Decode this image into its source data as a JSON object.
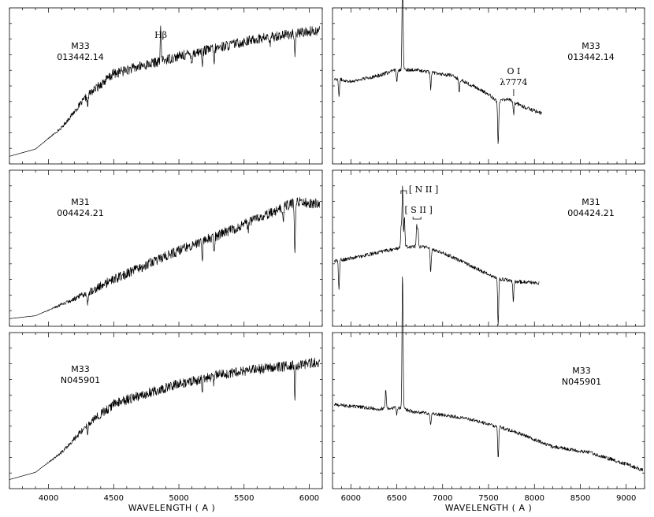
{
  "figure": {
    "xlabel_left": "WAVELENGTH  ( A )",
    "xlabel_right": "WAVELENGTH  ( A )"
  },
  "chart_data": [
    {
      "type": "line",
      "panel": "top-left",
      "galaxy": "M33",
      "star": "013442.14",
      "xlim": [
        3700,
        6100
      ],
      "xticks": [
        4000,
        4500,
        5000,
        5500,
        6000
      ],
      "yticks": "unlabeled",
      "annotations": [
        {
          "text": "Hβ",
          "wavelength": 4861
        }
      ],
      "shape": "blue-weak",
      "profile": {
        "x": [
          3700,
          3900,
          4100,
          4300,
          4500,
          4700,
          5000,
          5300,
          5600,
          5900,
          6080
        ],
        "y": [
          0.02,
          0.07,
          0.22,
          0.45,
          0.6,
          0.65,
          0.72,
          0.78,
          0.84,
          0.88,
          0.9
        ]
      },
      "lines": [
        [
          4861,
          0.22,
          1
        ],
        [
          5890,
          -0.18,
          1
        ],
        [
          5270,
          -0.1,
          1
        ],
        [
          5180,
          -0.08,
          1
        ],
        [
          4300,
          -0.08,
          1
        ],
        [
          5100,
          -0.06,
          1
        ],
        [
          5700,
          -0.06,
          1
        ]
      ]
    },
    {
      "type": "line",
      "panel": "top-right",
      "galaxy": "M33",
      "star": "013442.14",
      "xlim": [
        5800,
        9200
      ],
      "xticks": [
        6000,
        6500,
        7000,
        7500,
        8000,
        8500,
        9000
      ],
      "yticks": "unlabeled",
      "annotations": [
        {
          "text": "O I",
          "wavelength": 7774
        },
        {
          "text": "λ7774",
          "wavelength": 7774
        }
      ],
      "shape": "red-stars",
      "profile": {
        "x": [
          5820,
          6000,
          6300,
          6500,
          6700,
          6900,
          7100,
          7300,
          7500,
          7600,
          7700,
          7900,
          8080
        ],
        "y": [
          0.56,
          0.54,
          0.58,
          0.62,
          0.62,
          0.6,
          0.58,
          0.52,
          0.45,
          0.4,
          0.42,
          0.36,
          0.32
        ]
      },
      "lines": [
        [
          6563,
          0.72,
          1
        ],
        [
          7605,
          -0.3,
          1
        ],
        [
          6870,
          -0.12,
          1
        ],
        [
          6500,
          -0.08,
          1
        ],
        [
          5870,
          -0.12,
          1
        ],
        [
          7180,
          -0.1,
          1
        ],
        [
          7774,
          -0.08,
          1
        ]
      ]
    },
    {
      "type": "line",
      "panel": "middle-left",
      "galaxy": "M31",
      "star": "004424.21",
      "xlim": [
        3700,
        6100
      ],
      "xticks": [
        4000,
        4500,
        5000,
        5500,
        6000
      ],
      "yticks": "unlabeled",
      "annotations": [],
      "shape": "blue-strong",
      "profile": {
        "x": [
          3700,
          3900,
          4200,
          4500,
          4800,
          5100,
          5400,
          5700,
          5900,
          6080
        ],
        "y": [
          0.02,
          0.04,
          0.16,
          0.3,
          0.42,
          0.54,
          0.64,
          0.76,
          0.84,
          0.82
        ]
      },
      "lines": [
        [
          5890,
          -0.35,
          1
        ],
        [
          5180,
          -0.12,
          1
        ],
        [
          5270,
          -0.12,
          1
        ],
        [
          4300,
          -0.08,
          1
        ],
        [
          5800,
          -0.1,
          1
        ],
        [
          5530,
          -0.06,
          1
        ]
      ]
    },
    {
      "type": "line",
      "panel": "middle-right",
      "galaxy": "M31",
      "star": "004424.21",
      "xlim": [
        5800,
        9200
      ],
      "xticks": [
        6000,
        6500,
        7000,
        7500,
        8000,
        8500,
        9000
      ],
      "yticks": "unlabeled",
      "annotations": [
        {
          "text": "[ N II ]",
          "wavelength": 6563
        },
        {
          "text": "[ S II ]",
          "wavelength": 6720
        }
      ],
      "shape": "red-stars",
      "profile": {
        "x": [
          5820,
          6000,
          6300,
          6600,
          6800,
          7000,
          7200,
          7400,
          7600,
          7800,
          8050
        ],
        "y": [
          0.42,
          0.44,
          0.48,
          0.52,
          0.52,
          0.48,
          0.42,
          0.36,
          0.3,
          0.28,
          0.27
        ]
      },
      "lines": [
        [
          6563,
          0.42,
          1
        ],
        [
          6584,
          0.2,
          1
        ],
        [
          6548,
          0.15,
          1
        ],
        [
          6717,
          0.14,
          1
        ],
        [
          6731,
          0.12,
          1
        ],
        [
          7605,
          -0.32,
          1
        ],
        [
          5870,
          -0.2,
          1
        ],
        [
          6870,
          -0.16,
          1
        ],
        [
          7770,
          -0.14,
          1
        ]
      ]
    },
    {
      "type": "line",
      "panel": "bottom-left",
      "galaxy": "M33",
      "star": "N045901",
      "xlim": [
        3700,
        6100
      ],
      "xticks": [
        4000,
        4500,
        5000,
        5500,
        6000
      ],
      "yticks": "unlabeled",
      "annotations": [],
      "shape": "blue-weak",
      "profile": {
        "x": [
          3700,
          3900,
          4100,
          4300,
          4500,
          4700,
          5000,
          5300,
          5600,
          5900,
          6080
        ],
        "y": [
          0.03,
          0.08,
          0.22,
          0.42,
          0.56,
          0.62,
          0.7,
          0.76,
          0.8,
          0.83,
          0.85
        ]
      },
      "lines": [
        [
          5890,
          -0.22,
          1
        ],
        [
          5180,
          -0.08,
          1
        ],
        [
          4300,
          -0.06,
          1
        ],
        [
          5270,
          -0.06,
          1
        ]
      ]
    },
    {
      "type": "line",
      "panel": "bottom-right",
      "galaxy": "M33",
      "star": "N045901",
      "xlim": [
        5800,
        9200
      ],
      "xticks": [
        6000,
        6500,
        7000,
        7500,
        8000,
        8500,
        9000
      ],
      "yticks": "unlabeled",
      "annotations": [],
      "shape": "red-full",
      "profile": {
        "x": [
          5820,
          6000,
          6300,
          6500,
          6700,
          7000,
          7300,
          7600,
          7800,
          8200,
          8600,
          9000,
          9180
        ],
        "y": [
          0.55,
          0.54,
          0.52,
          0.53,
          0.5,
          0.48,
          0.45,
          0.4,
          0.36,
          0.26,
          0.22,
          0.14,
          0.1
        ]
      },
      "lines": [
        [
          6563,
          0.95,
          1
        ],
        [
          6380,
          0.12,
          1
        ],
        [
          7605,
          -0.22,
          1
        ],
        [
          6870,
          -0.08,
          1
        ],
        [
          6500,
          -0.05,
          1
        ]
      ]
    }
  ]
}
